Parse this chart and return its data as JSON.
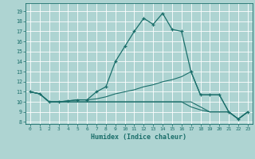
{
  "xlabel": "Humidex (Indice chaleur)",
  "bg_color": "#aed4d2",
  "grid_color": "#ffffff",
  "line_color": "#1a6e6a",
  "xlim": [
    -0.5,
    23.5
  ],
  "ylim": [
    7.8,
    19.8
  ],
  "yticks": [
    8,
    9,
    10,
    11,
    12,
    13,
    14,
    15,
    16,
    17,
    18,
    19
  ],
  "xticks": [
    0,
    1,
    2,
    3,
    4,
    5,
    6,
    7,
    8,
    9,
    10,
    11,
    12,
    13,
    14,
    15,
    16,
    17,
    18,
    19,
    20,
    21,
    22,
    23
  ],
  "series": [
    [
      11.0,
      10.8,
      10.0,
      10.0,
      10.1,
      10.2,
      10.2,
      11.0,
      11.5,
      14.0,
      15.5,
      17.0,
      18.3,
      17.7,
      18.8,
      17.2,
      17.0,
      13.0,
      10.7,
      10.7,
      10.7,
      9.0,
      8.3,
      9.0
    ],
    [
      11.0,
      10.8,
      10.0,
      10.0,
      10.1,
      10.2,
      10.2,
      10.3,
      10.5,
      10.8,
      11.0,
      11.2,
      11.5,
      11.7,
      12.0,
      12.2,
      12.5,
      13.0,
      10.7,
      10.7,
      10.7,
      9.0,
      8.3,
      9.0
    ],
    [
      11.0,
      10.8,
      10.0,
      10.0,
      10.0,
      10.0,
      10.0,
      10.0,
      10.0,
      10.0,
      10.0,
      10.0,
      10.0,
      10.0,
      10.0,
      10.0,
      10.0,
      9.5,
      9.2,
      9.0,
      9.0,
      9.0,
      8.3,
      9.0
    ],
    [
      11.0,
      10.8,
      10.0,
      10.0,
      10.0,
      10.0,
      10.0,
      10.0,
      10.0,
      10.0,
      10.0,
      10.0,
      10.0,
      10.0,
      10.0,
      10.0,
      10.0,
      10.0,
      9.5,
      9.0,
      9.0,
      9.0,
      8.3,
      9.0
    ]
  ]
}
